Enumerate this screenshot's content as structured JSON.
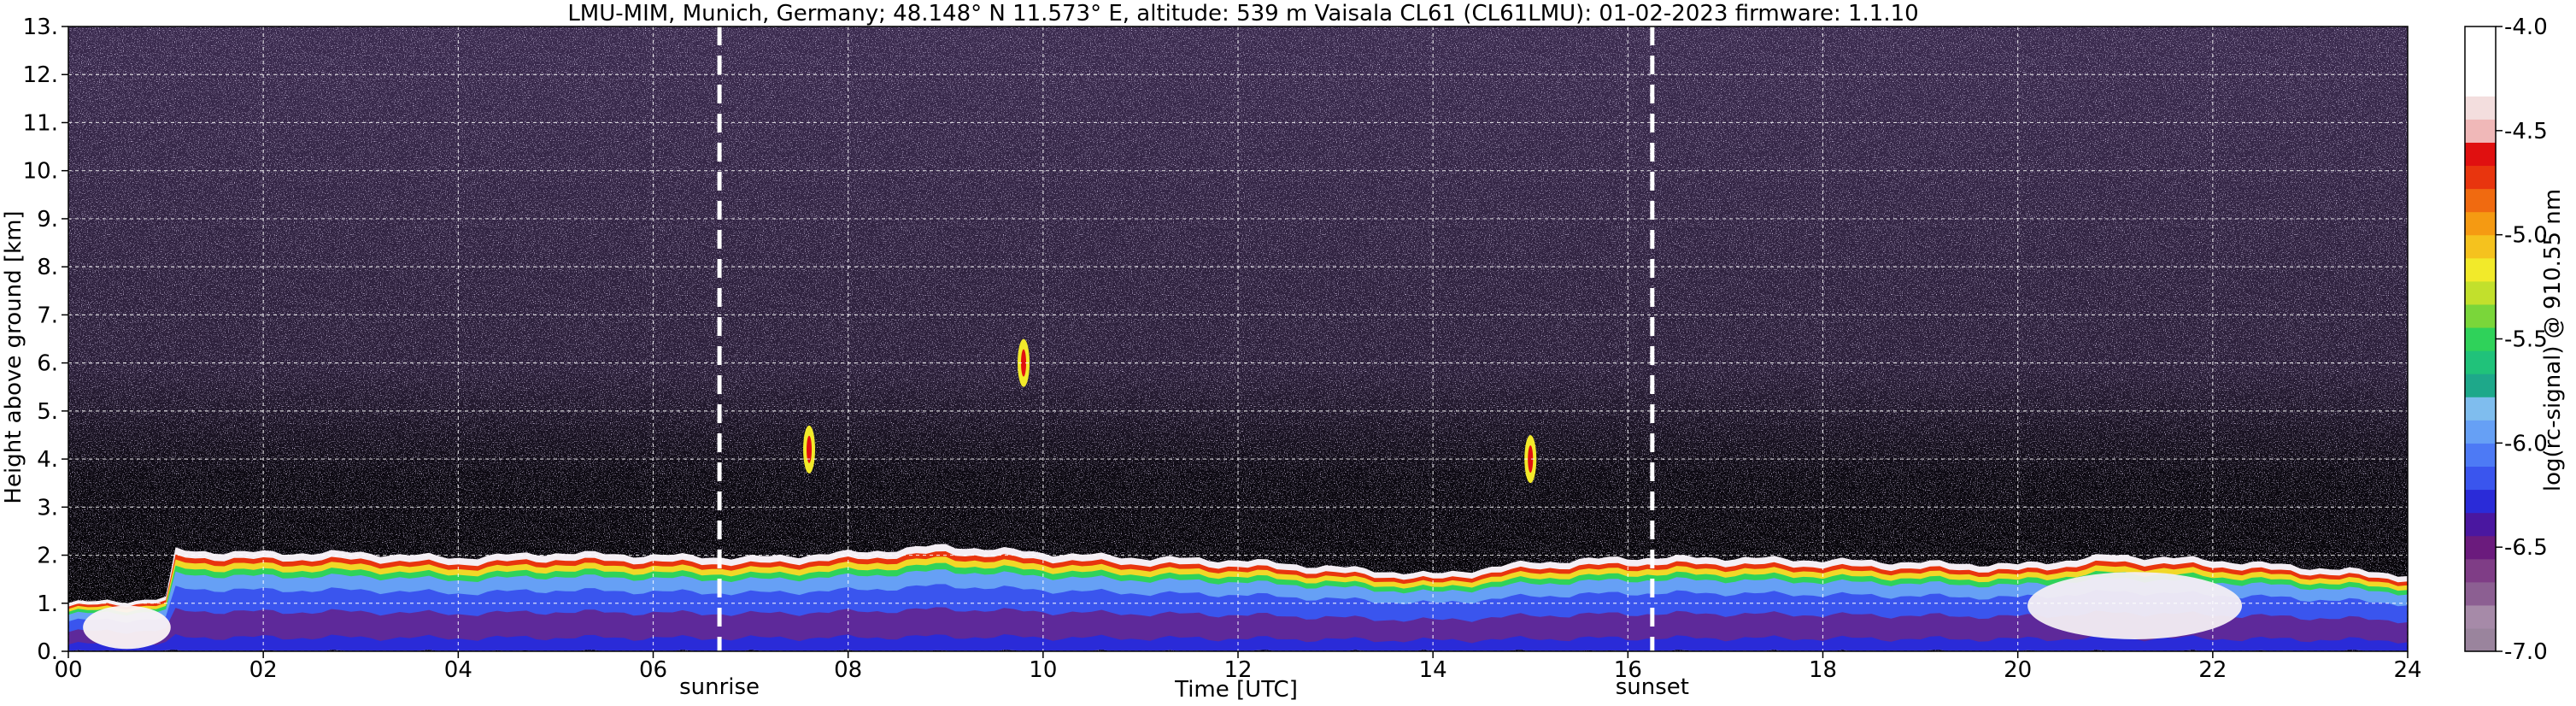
{
  "chart_data": {
    "type": "heatmap",
    "title": "LMU-MIM, Munich, Germany; 48.148° N 11.573° E, altitude: 539 m    Vaisala CL61 (CL61LMU): 01-02-2023    firmware: 1.1.10",
    "xlabel": "Time [UTC]",
    "ylabel": "Height above ground [km]",
    "xlim": [
      0,
      24
    ],
    "ylim": [
      0,
      13
    ],
    "x_ticks": [
      0,
      2,
      4,
      6,
      8,
      10,
      12,
      14,
      16,
      18,
      20,
      22,
      24
    ],
    "x_tick_labels": [
      "00",
      "02",
      "04",
      "06",
      "08",
      "10",
      "12",
      "14",
      "16",
      "18",
      "20",
      "22",
      "24"
    ],
    "y_ticks": [
      0,
      1,
      2,
      3,
      4,
      5,
      6,
      7,
      8,
      9,
      10,
      11,
      12,
      13
    ],
    "y_tick_labels": [
      "0.",
      "1.",
      "2.",
      "3.",
      "4.",
      "5.",
      "6.",
      "7.",
      "8.",
      "9.",
      "10.",
      "11.",
      "12.",
      "13."
    ],
    "grid": true,
    "markers": [
      {
        "label": "sunrise",
        "time": 6.68
      },
      {
        "label": "sunset",
        "time": 16.25
      }
    ],
    "colorbar": {
      "label": "log(rc-signal) @ 910.55 nm",
      "range": [
        -7.0,
        -4.0
      ],
      "tick_values": [
        -4.0,
        -4.5,
        -5.0,
        -5.5,
        -6.0,
        -6.5,
        -7.0
      ],
      "tick_labels": [
        "-4.0",
        "-4.5",
        "-5.0",
        "-5.5",
        "-6.0",
        "-6.5",
        "-7.0"
      ],
      "colors": [
        "#9a849d",
        "#a68aa8",
        "#8c5f92",
        "#7f3d86",
        "#6b1b7d",
        "#4a17a0",
        "#2a2bd8",
        "#3a55ee",
        "#4d7af5",
        "#66a0f5",
        "#7fbdee",
        "#1ea88a",
        "#20c27a",
        "#2fd25a",
        "#7ad63a",
        "#c2e02c",
        "#f2ea2a",
        "#f5c21e",
        "#f59a12",
        "#f06a10",
        "#e8350e",
        "#e01010",
        "#f0b8b8",
        "#f3dede",
        "#ffffff",
        "#ffffff",
        "#ffffff"
      ]
    },
    "boundary_layer_top_km": [
      [
        0,
        1.0
      ],
      [
        1,
        1.1
      ],
      [
        1.1,
        2.1
      ],
      [
        2,
        2.05
      ],
      [
        3,
        2.05
      ],
      [
        4,
        1.95
      ],
      [
        5,
        2.05
      ],
      [
        6,
        2.0
      ],
      [
        7,
        1.95
      ],
      [
        8,
        2.05
      ],
      [
        9,
        2.2
      ],
      [
        10,
        2.05
      ],
      [
        11,
        1.95
      ],
      [
        12,
        1.9
      ],
      [
        13,
        1.75
      ],
      [
        14,
        1.6
      ],
      [
        15,
        1.85
      ],
      [
        16,
        1.95
      ],
      [
        17,
        1.95
      ],
      [
        18,
        1.9
      ],
      [
        19,
        1.85
      ],
      [
        20,
        1.8
      ],
      [
        21,
        2.0
      ],
      [
        22,
        1.9
      ],
      [
        23,
        1.75
      ],
      [
        24,
        1.6
      ]
    ],
    "elevated_features": [
      {
        "time": 7.6,
        "height_km": 4.2
      },
      {
        "time": 9.8,
        "height_km": 6.0
      },
      {
        "time": 15.0,
        "height_km": 4.0
      }
    ]
  }
}
